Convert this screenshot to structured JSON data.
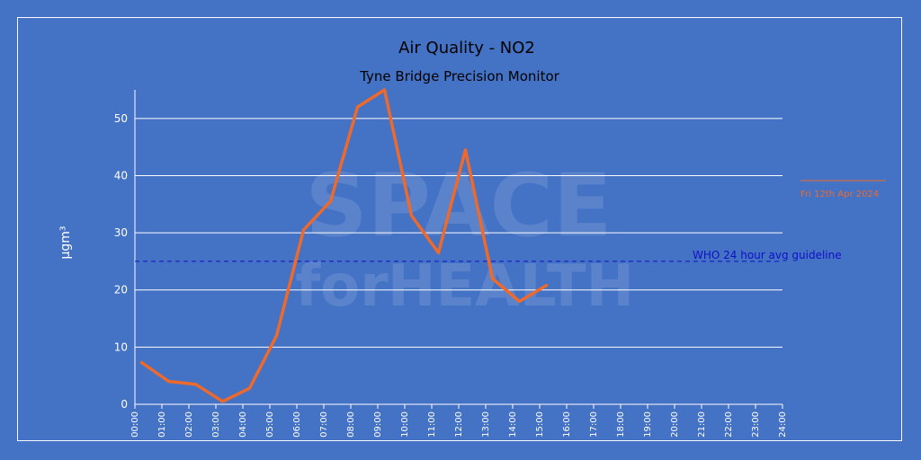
{
  "chart_data": {
    "type": "line",
    "title": "Air Quality - NO2",
    "subtitle": "Tyne Bridge Precision Monitor",
    "ylabel": "µgm³",
    "xlabel": "",
    "ylim": [
      0,
      55
    ],
    "yticks": [
      0,
      10,
      20,
      30,
      40,
      50
    ],
    "grid": true,
    "legend_position": "right",
    "x_tick_labels": [
      "00:00",
      "01:00",
      "02:00",
      "03:00",
      "04:00",
      "05:00",
      "06:00",
      "07:00",
      "08:00",
      "09:00",
      "10:00",
      "11:00",
      "12:00",
      "13:00",
      "14:00",
      "15:00",
      "16:00",
      "17:00",
      "18:00",
      "19:00",
      "20:00",
      "21:00",
      "22:00",
      "23:00",
      "24:00"
    ],
    "x_range_hours": [
      0,
      24
    ],
    "series": [
      {
        "name": "Fri 12th Apr 2024",
        "color": "#ed6a2c",
        "x_hours": [
          0.25,
          1.25,
          2.25,
          3.25,
          4.25,
          5.25,
          6.25,
          7.25,
          8.25,
          9.25,
          10.25,
          11.25,
          12.25,
          13.25,
          14.25,
          15.25
        ],
        "values": [
          7.3,
          4.0,
          3.5,
          0.5,
          2.8,
          12.0,
          30.5,
          35.5,
          52.0,
          55.0,
          33.0,
          26.5,
          44.5,
          22.0,
          18.0,
          20.8
        ]
      }
    ],
    "reference_line": {
      "label": "WHO 24 hour avg guideline",
      "value": 25,
      "color": "#1010c8"
    }
  },
  "watermark": {
    "line1": "SPACE",
    "line2a": "for",
    "line2b": "HEALTH"
  }
}
